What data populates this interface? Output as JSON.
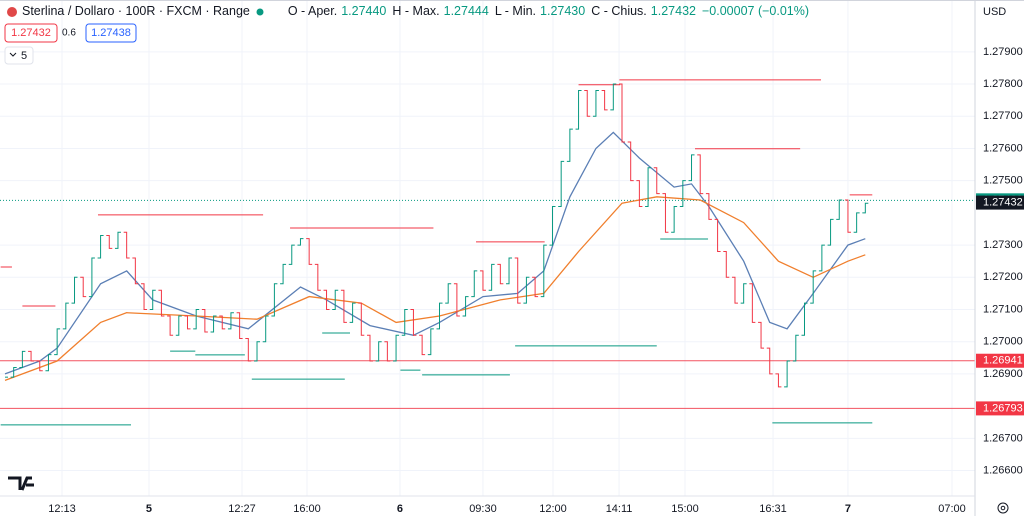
{
  "header": {
    "symbol": "Sterlina / Dollaro · 100R · FXCM · Range",
    "ohlc": [
      {
        "label": "O - Aper.",
        "value": "1.27440"
      },
      {
        "label": "H - Max.",
        "value": "1.27444"
      },
      {
        "label": "L - Min.",
        "value": "1.27430"
      },
      {
        "label": "C - Chius.",
        "value": "1.27432"
      }
    ],
    "change": "−0.00007 (−0.01%)",
    "sell": "1.27432",
    "spread": "0.6",
    "buy": "1.27438",
    "indicators": "5"
  },
  "axis_currency": "USD",
  "chart_data": {
    "type": "range_bars",
    "up_color": "#089981",
    "down_color": "#f23645",
    "close": [
      1.2689,
      1.2692,
      1.2697,
      1.2694,
      1.2691,
      1.2696,
      1.2704,
      1.2712,
      1.272,
      1.2714,
      1.2726,
      1.2733,
      1.2729,
      1.2734,
      1.2726,
      1.2718,
      1.271,
      1.2716,
      1.2708,
      1.2702,
      1.2708,
      1.2704,
      1.271,
      1.2703,
      1.2708,
      1.2704,
      1.2709,
      1.2701,
      1.2694,
      1.27,
      1.2708,
      1.2718,
      1.2724,
      1.273,
      1.2732,
      1.2724,
      1.2716,
      1.271,
      1.2716,
      1.2706,
      1.2712,
      1.2702,
      1.2694,
      1.27,
      1.2694,
      1.2702,
      1.271,
      1.2702,
      1.2696,
      1.2704,
      1.2712,
      1.2718,
      1.2708,
      1.2714,
      1.2722,
      1.2716,
      1.2724,
      1.2718,
      1.2726,
      1.2712,
      1.272,
      1.2714,
      1.273,
      1.2742,
      1.2756,
      1.2766,
      1.2778,
      1.277,
      1.2778,
      1.2772,
      1.278,
      1.2762,
      1.275,
      1.2742,
      1.2754,
      1.2746,
      1.2734,
      1.2742,
      1.275,
      1.2758,
      1.2746,
      1.2738,
      1.2728,
      1.272,
      1.2712,
      1.2718,
      1.2706,
      1.2698,
      1.269,
      1.2686,
      1.2694,
      1.2702,
      1.2712,
      1.2722,
      1.273,
      1.2738,
      1.2744,
      1.2734,
      1.274,
      1.2743
    ],
    "moving_averages": [
      {
        "color": "#5b7fb5",
        "x": [
          0,
          4,
          6,
          11,
          14,
          17,
          22,
          28,
          34,
          37,
          42,
          47,
          50,
          55,
          59,
          62,
          65,
          68,
          70,
          73,
          77,
          79,
          81,
          85,
          88,
          90,
          93,
          97,
          99
        ],
        "values": [
          1.269,
          1.2694,
          1.2698,
          1.2718,
          1.2722,
          1.2713,
          1.2708,
          1.2704,
          1.2717,
          1.2713,
          1.2705,
          1.2702,
          1.2706,
          1.2714,
          1.2715,
          1.2722,
          1.2745,
          1.276,
          1.2765,
          1.2757,
          1.2748,
          1.2749,
          1.2742,
          1.2725,
          1.2706,
          1.2704,
          1.2715,
          1.273,
          1.2732
        ]
      },
      {
        "color": "#f07f2d",
        "x": [
          0,
          6,
          11,
          14,
          22,
          29,
          35,
          41,
          45,
          50,
          57,
          62,
          66,
          71,
          75,
          80,
          85,
          89,
          93,
          97,
          99
        ],
        "values": [
          1.2688,
          1.2694,
          1.2706,
          1.2709,
          1.2708,
          1.2707,
          1.2714,
          1.2712,
          1.2706,
          1.2708,
          1.2713,
          1.2715,
          1.2728,
          1.2743,
          1.2745,
          1.2744,
          1.2737,
          1.2725,
          1.272,
          1.2725,
          1.2727
        ]
      }
    ],
    "levels": [
      {
        "color": "#f23645",
        "start": -0.5,
        "end": 0.8,
        "value": 1.27232
      },
      {
        "color": "#f23645",
        "start": 2,
        "end": 5.8,
        "value": 1.27111
      },
      {
        "color": "#f23645",
        "start": 10.7,
        "end": 29.7,
        "value": 1.27394
      },
      {
        "color": "#f23645",
        "start": 32.8,
        "end": 49.3,
        "value": 1.27353
      },
      {
        "color": "#f23645",
        "start": 54.2,
        "end": 62.1,
        "value": 1.2731
      },
      {
        "color": "#f23645",
        "start": 66,
        "end": 70.8,
        "value": 1.27798
      },
      {
        "color": "#f23645",
        "start": 70.7,
        "end": 93.9,
        "value": 1.27813
      },
      {
        "color": "#f23645",
        "start": 79.4,
        "end": 91.5,
        "value": 1.27599
      },
      {
        "color": "#f23645",
        "start": 97.2,
        "end": 99.8,
        "value": 1.27456
      },
      {
        "color": "#089981",
        "start": -0.5,
        "end": 14.5,
        "value": 1.26742
      },
      {
        "color": "#089981",
        "start": 19,
        "end": 21.9,
        "value": 1.26971
      },
      {
        "color": "#089981",
        "start": 21.9,
        "end": 27.6,
        "value": 1.26959
      },
      {
        "color": "#089981",
        "start": 28.4,
        "end": 39.1,
        "value": 1.26884
      },
      {
        "color": "#089981",
        "start": 36.5,
        "end": 39.7,
        "value": 1.27027
      },
      {
        "color": "#089981",
        "start": 45.5,
        "end": 47.8,
        "value": 1.26912
      },
      {
        "color": "#089981",
        "start": 48,
        "end": 58.1,
        "value": 1.26897
      },
      {
        "color": "#089981",
        "start": 58.7,
        "end": 75,
        "value": 1.26987
      },
      {
        "color": "#089981",
        "start": 75.4,
        "end": 80.9,
        "value": 1.27319
      },
      {
        "color": "#089981",
        "start": 88.3,
        "end": 99.8,
        "value": 1.26748
      }
    ],
    "price_lines": [
      {
        "value": 1.27439,
        "label": "1.27439",
        "color": "#089981",
        "dotted": true
      },
      {
        "value": 1.27432,
        "label": "1.27432",
        "color": "#131722",
        "dotted": false,
        "hidden_line": true
      },
      {
        "value": 1.26941,
        "label": "1.26941",
        "color": "#f23645",
        "dotted": false
      },
      {
        "value": 1.26793,
        "label": "1.26793",
        "color": "#f23645",
        "dotted": false
      }
    ],
    "ylim": [
      1.26521,
      1.28061
    ],
    "yticks": [
      {
        "value": 1.279,
        "label": "1.27900"
      },
      {
        "value": 1.278,
        "label": "1.27800"
      },
      {
        "value": 1.277,
        "label": "1.27700"
      },
      {
        "value": 1.276,
        "label": "1.27600"
      },
      {
        "value": 1.275,
        "label": "1.27500"
      },
      {
        "value": 1.273,
        "label": "1.27300"
      },
      {
        "value": 1.272,
        "label": "1.27200"
      },
      {
        "value": 1.271,
        "label": "1.27100"
      },
      {
        "value": 1.27,
        "label": "1.27000"
      },
      {
        "value": 1.269,
        "label": "1.26900"
      },
      {
        "value": 1.267,
        "label": "1.26700"
      },
      {
        "value": 1.266,
        "label": "1.26600"
      }
    ],
    "xlim": [
      -0.575,
      111.62
    ],
    "xticks": [
      {
        "value": 6.56,
        "label": "12:13"
      },
      {
        "value": 16.57,
        "label": "5"
      },
      {
        "value": 27.27,
        "label": "12:27"
      },
      {
        "value": 34.75,
        "label": "16:00"
      },
      {
        "value": 45.45,
        "label": "6"
      },
      {
        "value": 55,
        "label": "09:30"
      },
      {
        "value": 63.06,
        "label": "12:00"
      },
      {
        "value": 70.66,
        "label": "14:11"
      },
      {
        "value": 78.25,
        "label": "15:00"
      },
      {
        "value": 88.38,
        "label": "16:31"
      },
      {
        "value": 97,
        "label": "7"
      },
      {
        "value": 108.97,
        "label": "07:00"
      }
    ],
    "grid": true
  }
}
